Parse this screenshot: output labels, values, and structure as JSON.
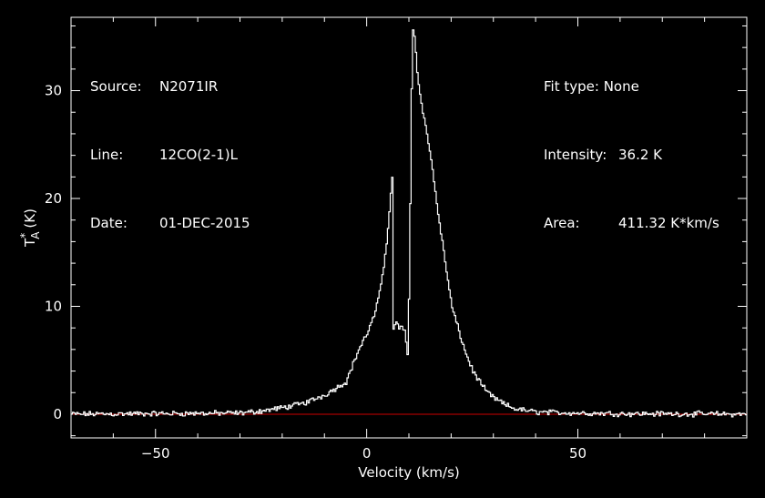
{
  "header": {
    "source_label": "Source:",
    "source": "N2071IR",
    "line_label": "Line:",
    "line": "12CO(2-1)L",
    "date_label": "Date:",
    "date": "01-DEC-2015",
    "fit_label": "Fit type:",
    "fit": "None",
    "intensity_label": "Intensity:",
    "intensity": "36.2 K",
    "area_label": "Area:",
    "area": "411.32 K*km/s"
  },
  "colors": {
    "background": "#000000",
    "axes": "#ffffff",
    "spectrum": "#ffffff",
    "baseline": "#cc0000",
    "noise_tint": "#ff8a8a"
  },
  "chart_data": {
    "type": "line",
    "title": "",
    "xlabel": "Velocity (km/s)",
    "ylabel": "T",
    "ylabel_sup": "*",
    "ylabel_sub": "A",
    "ylabel_unit": "(K)",
    "xlim": [
      -70,
      90
    ],
    "ylim": [
      -2.2,
      36.8
    ],
    "xticks": [
      -50,
      0,
      50
    ],
    "xtick_labels": [
      "−50",
      "0",
      "50"
    ],
    "yticks": [
      0,
      10,
      20,
      30
    ],
    "ytick_labels": [
      "0",
      "10",
      "20",
      "30"
    ],
    "grid": false,
    "legend": "none",
    "baseline_y": 0,
    "series": [
      {
        "x": [
          -70,
          -30,
          -25,
          -20,
          -15,
          -10,
          -5,
          -2,
          0,
          2,
          3,
          4,
          5,
          5.5,
          6,
          6.2,
          7,
          7.5,
          8,
          8.5,
          9,
          9.5,
          10,
          10.5,
          10.8,
          11,
          11.5,
          12,
          13,
          15,
          17,
          20,
          23,
          25,
          28,
          30,
          33,
          35,
          40,
          50,
          60,
          90
        ],
        "y": [
          0,
          0.1,
          0.3,
          0.6,
          1.0,
          1.8,
          3.0,
          6.0,
          7.5,
          9.5,
          11.5,
          14.0,
          17.5,
          20.0,
          22.6,
          8.0,
          8.5,
          7.8,
          8.3,
          8.0,
          7.5,
          5.0,
          13.0,
          30.0,
          35.7,
          36.0,
          33.5,
          31.0,
          28.5,
          24.0,
          18.0,
          10.0,
          6.0,
          4.0,
          2.2,
          1.5,
          0.8,
          0.5,
          0.2,
          0.1,
          0.05,
          0.0
        ]
      }
    ]
  }
}
